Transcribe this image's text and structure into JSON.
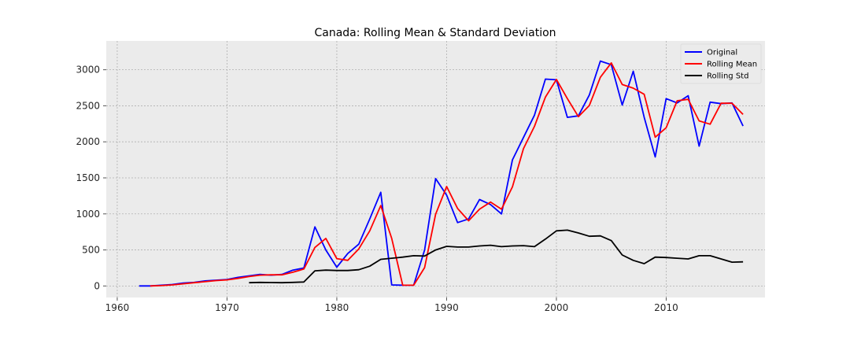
{
  "chart_data": {
    "type": "line",
    "title": "Canada: Rolling Mean & Standard Deviation",
    "xlabel": "",
    "ylabel": "",
    "xlim": [
      1959,
      2019
    ],
    "ylim": [
      -160,
      3400
    ],
    "xticks": [
      1960,
      1970,
      1980,
      1990,
      2000,
      2010
    ],
    "yticks": [
      0,
      500,
      1000,
      1500,
      2000,
      2500,
      3000
    ],
    "grid": true,
    "legend_position": "top-right",
    "series": [
      {
        "name": "Original",
        "color": "#0000ff",
        "x": [
          1962,
          1963,
          1964,
          1965,
          1966,
          1967,
          1968,
          1969,
          1970,
          1971,
          1972,
          1973,
          1974,
          1975,
          1976,
          1977,
          1978,
          1979,
          1980,
          1981,
          1982,
          1983,
          1984,
          1985,
          1986,
          1987,
          1988,
          1989,
          1990,
          1991,
          1992,
          1993,
          1994,
          1995,
          1996,
          1997,
          1998,
          1999,
          2000,
          2001,
          2002,
          2003,
          2004,
          2005,
          2006,
          2007,
          2008,
          2009,
          2010,
          2011,
          2012,
          2013,
          2014,
          2015,
          2016,
          2017
        ],
        "y": [
          0,
          0,
          10,
          20,
          40,
          50,
          70,
          80,
          90,
          120,
          140,
          160,
          150,
          160,
          220,
          250,
          820,
          500,
          260,
          450,
          580,
          930,
          1300,
          15,
          10,
          10,
          500,
          1490,
          1260,
          880,
          930,
          1200,
          1130,
          1000,
          1750,
          2060,
          2370,
          2870,
          2860,
          2340,
          2360,
          2650,
          3120,
          3070,
          2510,
          2980,
          2340,
          1790,
          2600,
          2540,
          2640,
          1940,
          2550,
          2530,
          2540,
          2220
        ]
      },
      {
        "name": "Rolling Mean",
        "color": "#ff0000",
        "x": [
          1963,
          1964,
          1965,
          1966,
          1967,
          1968,
          1969,
          1970,
          1971,
          1972,
          1973,
          1974,
          1975,
          1976,
          1977,
          1978,
          1979,
          1980,
          1981,
          1982,
          1983,
          1984,
          1985,
          1986,
          1987,
          1988,
          1989,
          1990,
          1991,
          1992,
          1993,
          1994,
          1995,
          1996,
          1997,
          1998,
          1999,
          2000,
          2001,
          2002,
          2003,
          2004,
          2005,
          2006,
          2007,
          2008,
          2009,
          2010,
          2011,
          2012,
          2013,
          2014,
          2015,
          2016,
          2017
        ],
        "y": [
          0,
          5,
          15,
          30,
          45,
          60,
          75,
          85,
          105,
          130,
          150,
          155,
          155,
          190,
          235,
          535,
          660,
          380,
          355,
          515,
          765,
          1115,
          660,
          10,
          10,
          255,
          995,
          1380,
          1075,
          905,
          1065,
          1165,
          1065,
          1375,
          1905,
          2215,
          2620,
          2865,
          2600,
          2350,
          2505,
          2895,
          3095,
          2795,
          2745,
          2660,
          2065,
          2195,
          2570,
          2590,
          2290,
          2245,
          2535,
          2535,
          2380
        ]
      },
      {
        "name": "Rolling Std",
        "color": "#000000",
        "x": [
          1972,
          1973,
          1974,
          1975,
          1976,
          1977,
          1978,
          1979,
          1980,
          1981,
          1982,
          1983,
          1984,
          1985,
          1986,
          1987,
          1988,
          1989,
          1990,
          1991,
          1992,
          1993,
          1994,
          1995,
          1996,
          1997,
          1998,
          1999,
          2000,
          2001,
          2002,
          2003,
          2004,
          2005,
          2006,
          2007,
          2008,
          2009,
          2010,
          2011,
          2012,
          2013,
          2014,
          2015,
          2016,
          2017
        ],
        "y": [
          45,
          50,
          48,
          45,
          50,
          55,
          210,
          220,
          215,
          215,
          225,
          275,
          370,
          385,
          400,
          420,
          415,
          500,
          550,
          540,
          540,
          555,
          565,
          545,
          555,
          560,
          545,
          650,
          765,
          775,
          735,
          690,
          695,
          630,
          430,
          355,
          310,
          400,
          395,
          385,
          375,
          420,
          420,
          375,
          330,
          335
        ]
      }
    ]
  }
}
